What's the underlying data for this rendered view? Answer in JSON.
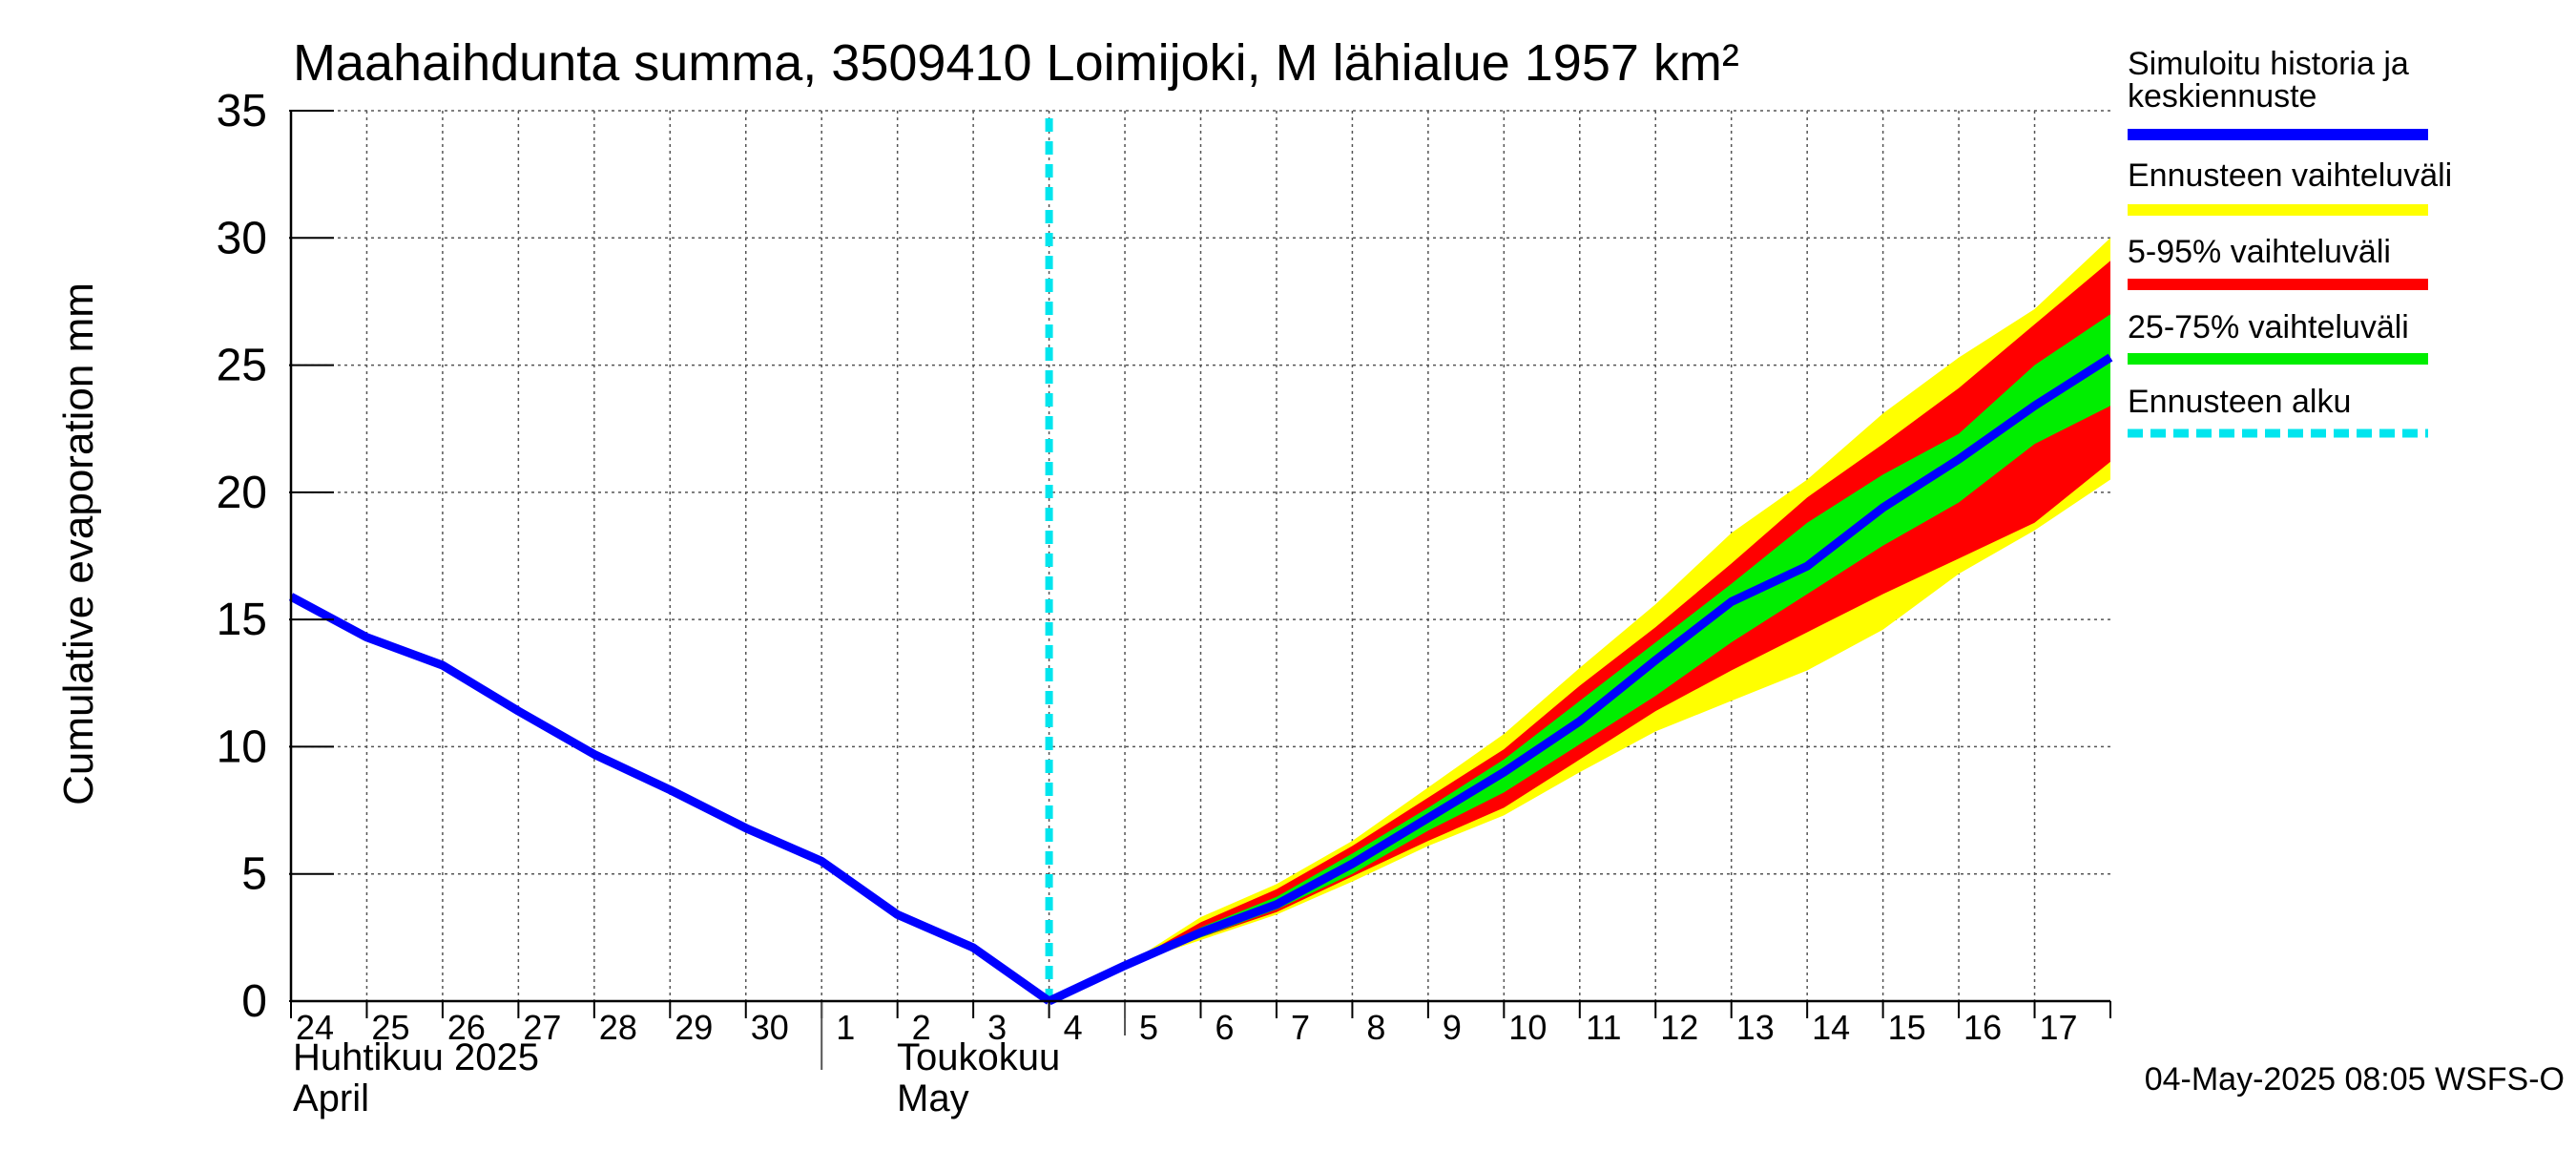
{
  "chart_data": {
    "type": "area",
    "title": "Maahaihdunta summa, 3509410 Loimijoki, M lähialue 1957 km²",
    "ylabel": "Cumulative evaporation   mm",
    "xlabel": "",
    "ylim": [
      0,
      35
    ],
    "y_ticks": [
      "0",
      "5",
      "10",
      "15",
      "20",
      "25",
      "30",
      "35"
    ],
    "grid": true,
    "legend_placement": "right",
    "x_tick_labels": [
      "24",
      "25",
      "26",
      "27",
      "28",
      "29",
      "30",
      "1",
      "2",
      "3",
      "4",
      "5",
      "6",
      "7",
      "8",
      "9",
      "10",
      "11",
      "12",
      "13",
      "14",
      "15",
      "16",
      "17"
    ],
    "month_labels": {
      "april_fi": "Huhtikuu  2025",
      "april_en": "April",
      "may_fi": "Toukokuu",
      "may_en": "May"
    },
    "forecast_start": "2025-05-04",
    "footer": "04-May-2025 08:05 WSFS-O",
    "legend": [
      {
        "label": "Simuloitu historia ja keskiennuste",
        "color": "#0000ff",
        "style": "solid"
      },
      {
        "label": "Ennusteen vaihteluväli",
        "color": "#ffff00",
        "style": "solid"
      },
      {
        "label": "5-95% vaihteluväli",
        "color": "#ff0000",
        "style": "solid"
      },
      {
        "label": "25-75% vaihteluväli",
        "color": "#00ee00",
        "style": "solid"
      },
      {
        "label": "Ennusteen alku",
        "color": "#00e5ee",
        "style": "dashed"
      }
    ],
    "history": {
      "name": "Simuloitu historia ja keskiennuste",
      "x": [
        "2025-04-24",
        "2025-04-25",
        "2025-04-26",
        "2025-04-27",
        "2025-04-28",
        "2025-04-29",
        "2025-04-30",
        "2025-05-01",
        "2025-05-02",
        "2025-05-03",
        "2025-05-04"
      ],
      "y": [
        15.9,
        14.3,
        13.2,
        11.4,
        9.7,
        8.3,
        6.8,
        5.5,
        3.4,
        2.1,
        0.0
      ]
    },
    "forecast": {
      "x": [
        "2025-05-04",
        "2025-05-05",
        "2025-05-06",
        "2025-05-07",
        "2025-05-08",
        "2025-05-09",
        "2025-05-10",
        "2025-05-11",
        "2025-05-12",
        "2025-05-13",
        "2025-05-14",
        "2025-05-15",
        "2025-05-16",
        "2025-05-17",
        "2025-05-18"
      ],
      "median": [
        0.0,
        1.4,
        2.7,
        3.8,
        5.4,
        7.2,
        9.0,
        11.0,
        13.4,
        15.7,
        17.1,
        19.4,
        21.3,
        23.4,
        25.3
      ],
      "p25": [
        0.0,
        1.4,
        2.5,
        3.6,
        5.0,
        6.7,
        8.2,
        10.1,
        12.0,
        14.1,
        16.0,
        17.9,
        19.6,
        21.9,
        23.4
      ],
      "p75": [
        0.0,
        1.4,
        2.9,
        4.1,
        5.8,
        7.6,
        9.5,
        11.8,
        14.1,
        16.4,
        18.8,
        20.7,
        22.3,
        25.0,
        27.0
      ],
      "p5": [
        0.0,
        1.4,
        2.5,
        3.5,
        4.9,
        6.3,
        7.6,
        9.5,
        11.4,
        13.0,
        14.5,
        16.0,
        17.4,
        18.8,
        21.2
      ],
      "p95": [
        0.0,
        1.4,
        3.1,
        4.4,
        6.1,
        8.0,
        9.9,
        12.4,
        14.7,
        17.2,
        19.8,
        21.9,
        24.1,
        26.6,
        29.1
      ],
      "min": [
        0.0,
        1.4,
        2.4,
        3.4,
        4.7,
        6.1,
        7.3,
        9.0,
        10.6,
        11.8,
        13.0,
        14.6,
        16.8,
        18.5,
        20.5
      ],
      "max": [
        0.0,
        1.4,
        3.3,
        4.6,
        6.3,
        8.4,
        10.5,
        13.1,
        15.6,
        18.4,
        20.5,
        23.1,
        25.3,
        27.2,
        30.0
      ]
    }
  }
}
